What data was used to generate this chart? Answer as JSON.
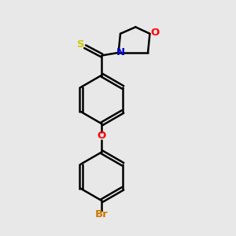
{
  "bg_color": "#e8e8e8",
  "bond_color": "#000000",
  "bond_width": 1.8,
  "N_color": "#0000cc",
  "O_color": "#ff0000",
  "S_color": "#cccc00",
  "Br_color": "#cc7700",
  "font_size": 9.5,
  "fig_w": 3.0,
  "fig_h": 3.0,
  "dpi": 100,
  "xlim": [
    0,
    10
  ],
  "ylim": [
    0,
    10
  ]
}
